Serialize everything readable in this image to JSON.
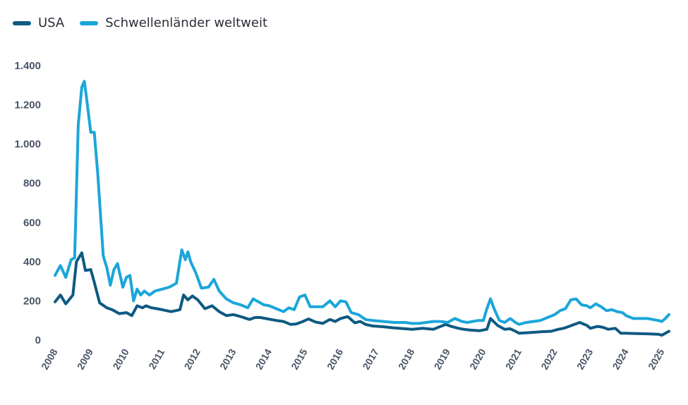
{
  "chart_data": {
    "type": "line",
    "title": "",
    "xlabel": "",
    "ylabel": "",
    "ylim": [
      0,
      1400
    ],
    "yticks": [
      0,
      200,
      400,
      600,
      800,
      1000,
      1200,
      1400
    ],
    "ytick_labels": [
      "0",
      "200",
      "400",
      "600",
      "800",
      "1.000",
      "1.200",
      "1.400"
    ],
    "xlim": [
      2008,
      2025.2
    ],
    "xticks": [
      2008,
      2009,
      2010,
      2011,
      2012,
      2013,
      2014,
      2015,
      2016,
      2017,
      2018,
      2019,
      2020,
      2021,
      2022,
      2023,
      2024,
      2025
    ],
    "xtick_labels": [
      "2008",
      "2009",
      "2010",
      "2011",
      "2012",
      "2013",
      "2014",
      "2015",
      "2016",
      "2017",
      "2018",
      "2019",
      "2020",
      "2021",
      "2022",
      "2023",
      "2024",
      "2025"
    ],
    "grid": false,
    "legend": "top-left",
    "series": [
      {
        "name": "USA",
        "color": "#0e5a82",
        "x": [
          2008.0,
          2008.15,
          2008.3,
          2008.5,
          2008.6,
          2008.75,
          2008.85,
          2009.0,
          2009.1,
          2009.25,
          2009.45,
          2009.6,
          2009.8,
          2010.0,
          2010.15,
          2010.3,
          2010.45,
          2010.55,
          2010.7,
          2010.85,
          2011.0,
          2011.25,
          2011.5,
          2011.6,
          2011.72,
          2011.85,
          2012.0,
          2012.2,
          2012.4,
          2012.6,
          2012.8,
          2013.0,
          2013.2,
          2013.45,
          2013.6,
          2013.75,
          2013.9,
          2014.05,
          2014.2,
          2014.4,
          2014.6,
          2014.75,
          2014.95,
          2015.1,
          2015.3,
          2015.5,
          2015.7,
          2015.85,
          2016.0,
          2016.2,
          2016.4,
          2016.55,
          2016.7,
          2016.9,
          2017.2,
          2017.5,
          2017.8,
          2018.0,
          2018.3,
          2018.6,
          2018.8,
          2018.95,
          2019.1,
          2019.3,
          2019.45,
          2019.6,
          2019.9,
          2020.1,
          2020.2,
          2020.4,
          2020.6,
          2020.75,
          2020.9,
          2021.0,
          2021.3,
          2021.6,
          2021.9,
          2022.1,
          2022.25,
          2022.4,
          2022.55,
          2022.7,
          2022.9,
          2023.0,
          2023.2,
          2023.35,
          2023.5,
          2023.7,
          2023.85,
          2024.0,
          2024.3,
          2024.6,
          2024.9,
          2025.0,
          2025.2
        ],
        "values": [
          195,
          230,
          185,
          230,
          400,
          445,
          355,
          360,
          295,
          190,
          165,
          155,
          135,
          140,
          125,
          175,
          165,
          175,
          165,
          160,
          155,
          145,
          155,
          230,
          205,
          225,
          205,
          160,
          175,
          145,
          125,
          130,
          120,
          105,
          115,
          115,
          110,
          105,
          100,
          95,
          80,
          82,
          95,
          108,
          92,
          85,
          105,
          95,
          110,
          120,
          88,
          95,
          80,
          72,
          68,
          62,
          58,
          55,
          60,
          55,
          70,
          80,
          70,
          60,
          55,
          52,
          48,
          55,
          110,
          75,
          55,
          58,
          45,
          35,
          38,
          42,
          45,
          55,
          60,
          70,
          80,
          90,
          75,
          60,
          70,
          65,
          55,
          60,
          35,
          35,
          33,
          32,
          30,
          25,
          45
        ]
      },
      {
        "name": "Schwellenländer weltweit",
        "color": "#1ba6d9",
        "x": [
          2008.0,
          2008.15,
          2008.3,
          2008.45,
          2008.55,
          2008.65,
          2008.75,
          2008.82,
          2008.88,
          2009.0,
          2009.1,
          2009.2,
          2009.35,
          2009.45,
          2009.55,
          2009.65,
          2009.75,
          2009.9,
          2010.0,
          2010.1,
          2010.2,
          2010.3,
          2010.4,
          2010.5,
          2010.65,
          2010.8,
          2011.0,
          2011.2,
          2011.4,
          2011.55,
          2011.65,
          2011.72,
          2011.8,
          2011.95,
          2012.1,
          2012.3,
          2012.45,
          2012.6,
          2012.8,
          2013.0,
          2013.2,
          2013.4,
          2013.55,
          2013.7,
          2013.85,
          2014.0,
          2014.2,
          2014.4,
          2014.55,
          2014.7,
          2014.85,
          2015.0,
          2015.15,
          2015.35,
          2015.5,
          2015.7,
          2015.85,
          2016.0,
          2016.15,
          2016.3,
          2016.5,
          2016.7,
          2016.9,
          2017.2,
          2017.5,
          2017.8,
          2018.0,
          2018.2,
          2018.4,
          2018.6,
          2018.8,
          2019.0,
          2019.2,
          2019.4,
          2019.55,
          2019.7,
          2019.85,
          2020.0,
          2020.1,
          2020.2,
          2020.3,
          2020.45,
          2020.6,
          2020.75,
          2020.9,
          2021.0,
          2021.2,
          2021.4,
          2021.6,
          2021.8,
          2022.0,
          2022.15,
          2022.3,
          2022.45,
          2022.6,
          2022.75,
          2022.9,
          2023.0,
          2023.15,
          2023.3,
          2023.45,
          2023.6,
          2023.75,
          2023.9,
          2024.0,
          2024.2,
          2024.4,
          2024.6,
          2024.75,
          2024.9,
          2025.0,
          2025.1,
          2025.2
        ],
        "values": [
          330,
          380,
          320,
          410,
          420,
          1100,
          1290,
          1320,
          1240,
          1060,
          1060,
          840,
          430,
          370,
          280,
          360,
          390,
          270,
          320,
          330,
          200,
          260,
          230,
          250,
          230,
          250,
          260,
          270,
          290,
          460,
          410,
          450,
          400,
          340,
          265,
          270,
          310,
          250,
          210,
          190,
          180,
          165,
          210,
          195,
          180,
          175,
          160,
          145,
          165,
          155,
          220,
          230,
          170,
          170,
          170,
          200,
          170,
          200,
          195,
          140,
          130,
          105,
          100,
          95,
          90,
          90,
          85,
          85,
          90,
          95,
          95,
          90,
          110,
          95,
          90,
          95,
          100,
          100,
          160,
          210,
          160,
          100,
          90,
          110,
          90,
          80,
          90,
          95,
          100,
          115,
          130,
          150,
          160,
          205,
          210,
          180,
          175,
          165,
          185,
          170,
          150,
          155,
          145,
          140,
          125,
          110,
          110,
          110,
          105,
          100,
          95,
          110,
          130
        ]
      }
    ]
  }
}
